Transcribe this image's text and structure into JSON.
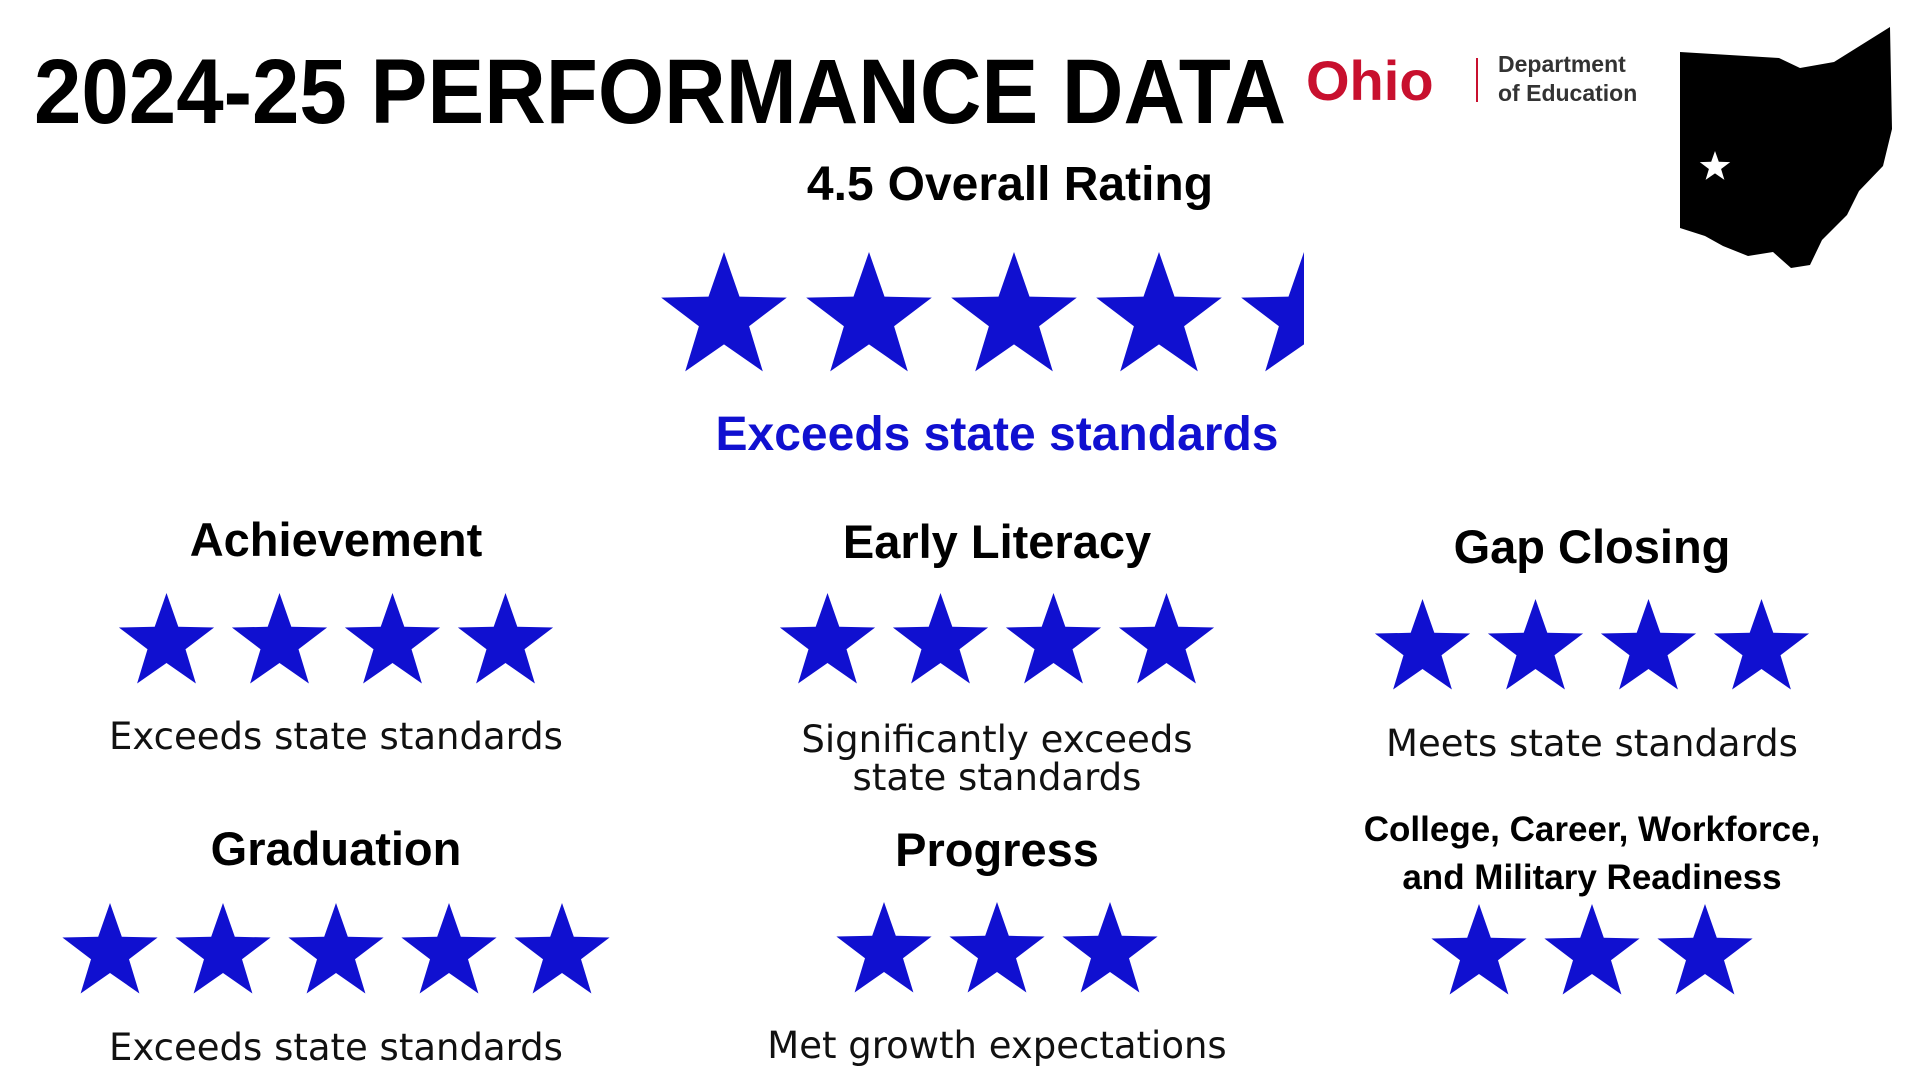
{
  "header": {
    "title": "2024-25 PERFORMANCE DATA",
    "logo": {
      "name": "Ohio",
      "department": "Department",
      "department_line2": "of Education"
    }
  },
  "overall": {
    "rating": 4.5,
    "label": "Overall Rating",
    "description": "Exceeds state standards"
  },
  "components": [
    {
      "name_lines": [
        "Achievement"
      ],
      "stars": 4,
      "description": [
        "Exceeds state standards"
      ]
    },
    {
      "name_lines": [
        "Early Literacy"
      ],
      "stars": 4,
      "description": [
        "Significantly exceeds",
        "state standards"
      ]
    },
    {
      "name_lines": [
        "Gap Closing"
      ],
      "stars": 4,
      "description": [
        "Meets state standards"
      ]
    },
    {
      "name_lines": [
        "Graduation"
      ],
      "stars": 5,
      "description": [
        "Exceeds state standards"
      ]
    },
    {
      "name_lines": [
        "Progress"
      ],
      "stars": 3,
      "description": [
        "Met growth expectations"
      ]
    },
    {
      "name_lines": [
        "College, Career, Workforce,",
        "and Military Readiness"
      ],
      "stars": 3,
      "description": []
    }
  ]
}
